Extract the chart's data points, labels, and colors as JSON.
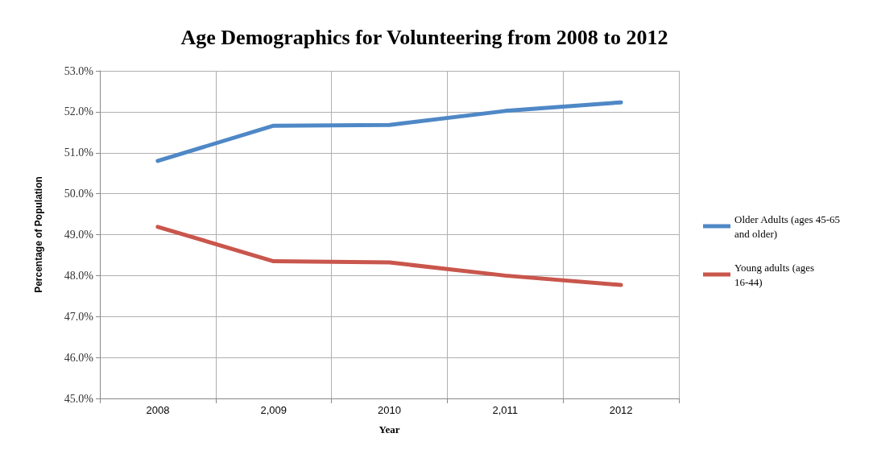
{
  "chart_data": {
    "type": "line",
    "title": "Age Demographics for Volunteering from 2008 to 2012",
    "xlabel": "Year",
    "ylabel": "Percentage of Population",
    "categories": [
      "2008",
      "2,009",
      "2010",
      "2,011",
      "2012"
    ],
    "series": [
      {
        "name": "Older Adults (ages 45-65 and older)",
        "color": "#4f88c6",
        "values": [
          50.8,
          51.66,
          51.68,
          52.02,
          52.23
        ]
      },
      {
        "name": "Young adults (ages 16-44)",
        "color": "#c9564c",
        "values": [
          49.19,
          48.35,
          48.32,
          48.0,
          47.77
        ]
      }
    ],
    "ylim": [
      45,
      53
    ],
    "yticks": [
      {
        "value": 45,
        "label": "45.0%"
      },
      {
        "value": 46,
        "label": "46.0%"
      },
      {
        "value": 47,
        "label": "47.0%"
      },
      {
        "value": 48,
        "label": "48.0%"
      },
      {
        "value": 49,
        "label": "49.0%"
      },
      {
        "value": 50,
        "label": "50.0%"
      },
      {
        "value": 51,
        "label": "51.0%"
      },
      {
        "value": 52,
        "label": "52.0%"
      },
      {
        "value": 53,
        "label": "53.0%"
      }
    ],
    "grid": true,
    "legend": "right",
    "marker": "none",
    "line_style": "solid"
  }
}
